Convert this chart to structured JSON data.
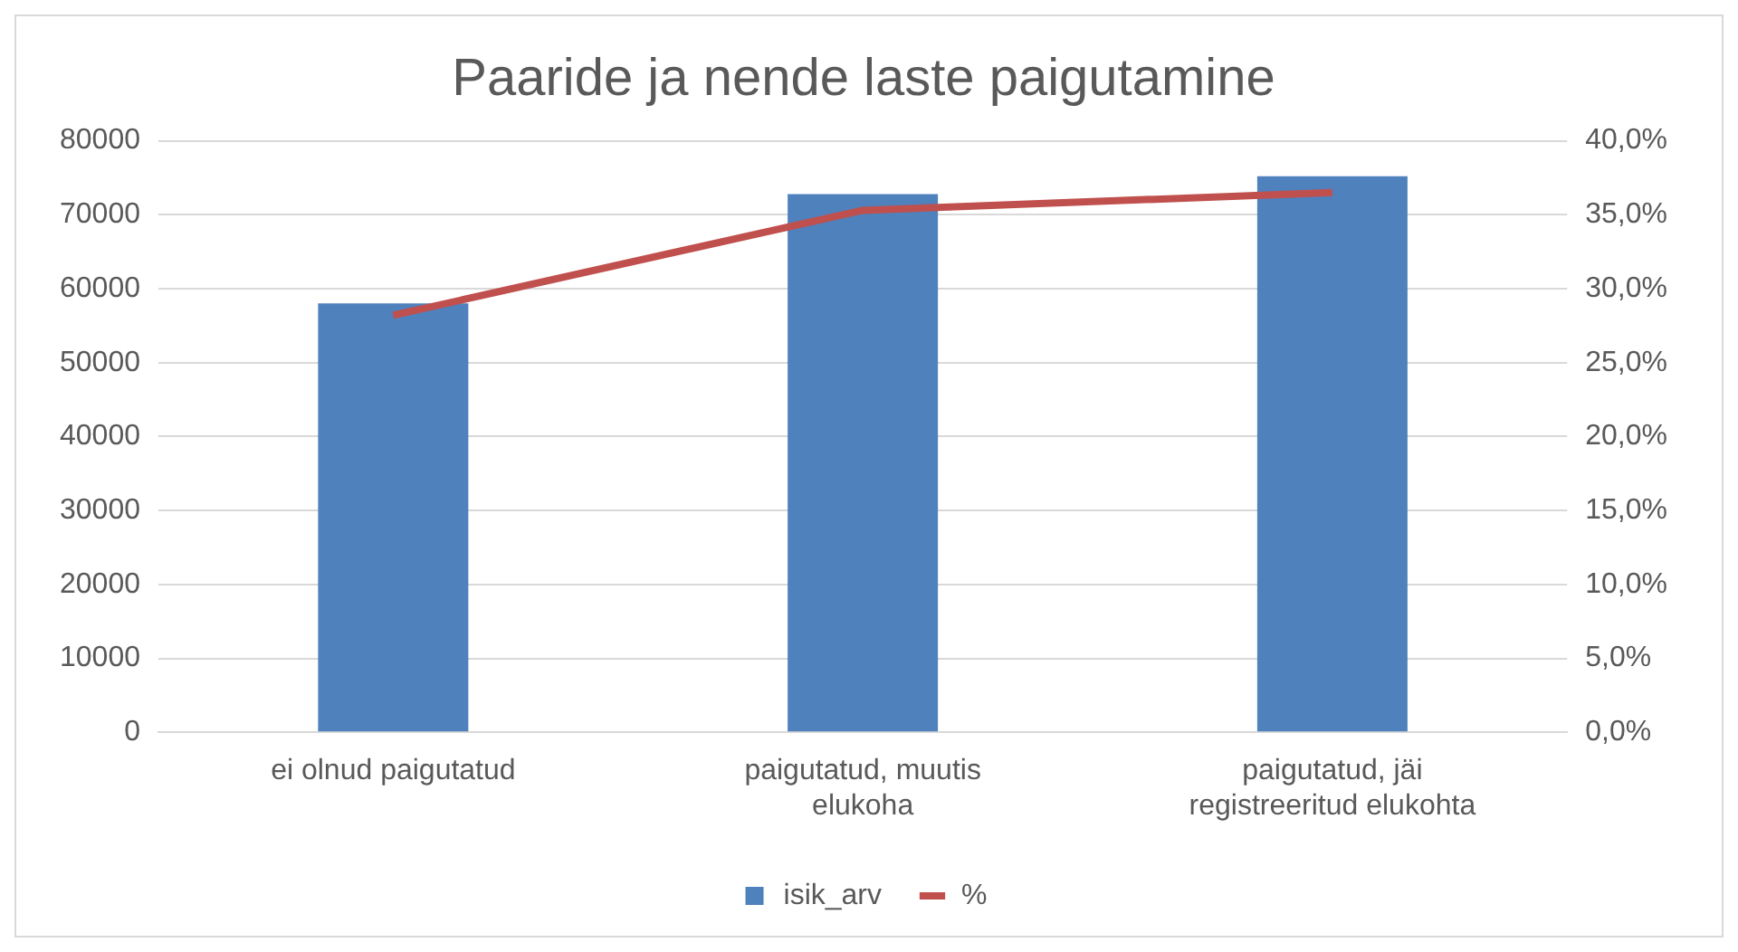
{
  "chart_data": {
    "type": "bar",
    "title": "Paaride ja nende laste paigutamine",
    "categories": [
      "ei olnud paigutatud",
      "paigutatud, muutis elukoha",
      "paigutatud, jäi registreeritud elukohta"
    ],
    "series": [
      {
        "name": "isik_arv",
        "color": "#4f81bd",
        "values": [
          58000,
          72800,
          75200
        ]
      },
      {
        "name": "%",
        "type": "line",
        "axis": "y2",
        "color": "#c0504d",
        "values": [
          28.2,
          35.3,
          36.5
        ]
      }
    ],
    "ylim": [
      0,
      80000
    ],
    "yticks": [
      0,
      10000,
      20000,
      30000,
      40000,
      50000,
      60000,
      70000,
      80000
    ],
    "y2lim": [
      0,
      40
    ],
    "y2ticks": [
      {
        "value": 0,
        "label": "0,0%"
      },
      {
        "value": 5,
        "label": "5,0%"
      },
      {
        "value": 10,
        "label": "10,0%"
      },
      {
        "value": 15,
        "label": "15,0%"
      },
      {
        "value": 20,
        "label": "20,0%"
      },
      {
        "value": 25,
        "label": "25,0%"
      },
      {
        "value": 30,
        "label": "30,0%"
      },
      {
        "value": 35,
        "label": "35,0%"
      },
      {
        "value": 40,
        "label": "40,0%"
      }
    ],
    "grid": "y",
    "legend": "bottom",
    "marker": "none",
    "line_style": "solid"
  }
}
